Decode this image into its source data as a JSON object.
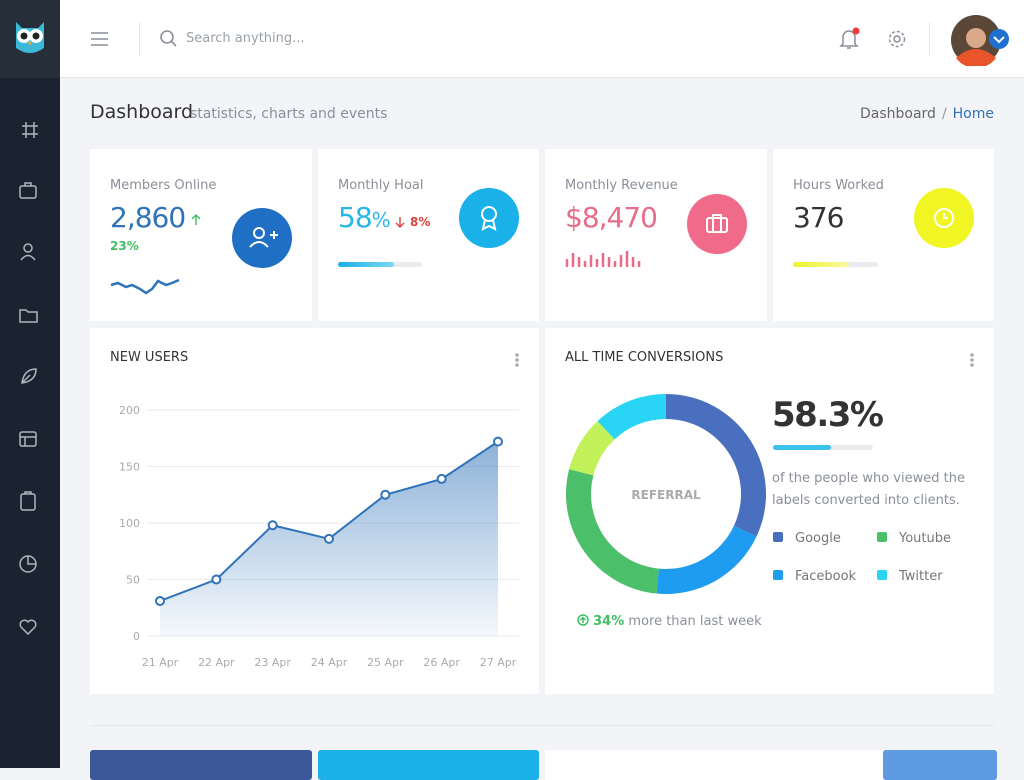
{
  "header": {
    "search_placeholder": "Search anything..."
  },
  "page": {
    "title": "Dashboard",
    "subtitle": "statistics, charts and events",
    "breadcrumb": [
      "Dashboard",
      "Home"
    ]
  },
  "stats": [
    {
      "label": "Members Online",
      "value": "2,860",
      "change": "23%"
    },
    {
      "label": "Monthly Hoal",
      "value": "58",
      "unit": "%",
      "change": "8%"
    },
    {
      "label": "Monthly Revenue",
      "value": "$8,470"
    },
    {
      "label": "Hours Worked",
      "value": "376"
    }
  ],
  "chart_data": [
    {
      "type": "line",
      "title": "NEW USERS",
      "categories": [
        "21 Apr",
        "22 Apr",
        "23 Apr",
        "24 Apr",
        "25 Apr",
        "26 Apr",
        "27 Apr"
      ],
      "values": [
        31,
        50,
        98,
        86,
        125,
        139,
        172
      ],
      "color": "#2f73b9",
      "ylim": [
        0,
        200
      ],
      "yticks": [
        0,
        50,
        100,
        150,
        200
      ],
      "grid": true
    },
    {
      "type": "pie",
      "title": "ALL TIME CONVERSIONS",
      "center_label": "REFERRAL",
      "headline": "58.3%",
      "description": "of the people who viewed the labels converted into clients.",
      "categories": [
        "Google",
        "Facebook",
        "Youtube",
        null,
        "Twitter"
      ],
      "values": [
        32,
        19.5,
        27.5,
        9,
        12
      ],
      "colors": [
        "#4a6fbf",
        "#1e9cf0",
        "#4cbf6b",
        "#c3f15a",
        "#2ad4f5"
      ],
      "footnote": {
        "value": "34%",
        "text": "more than last week"
      }
    }
  ]
}
